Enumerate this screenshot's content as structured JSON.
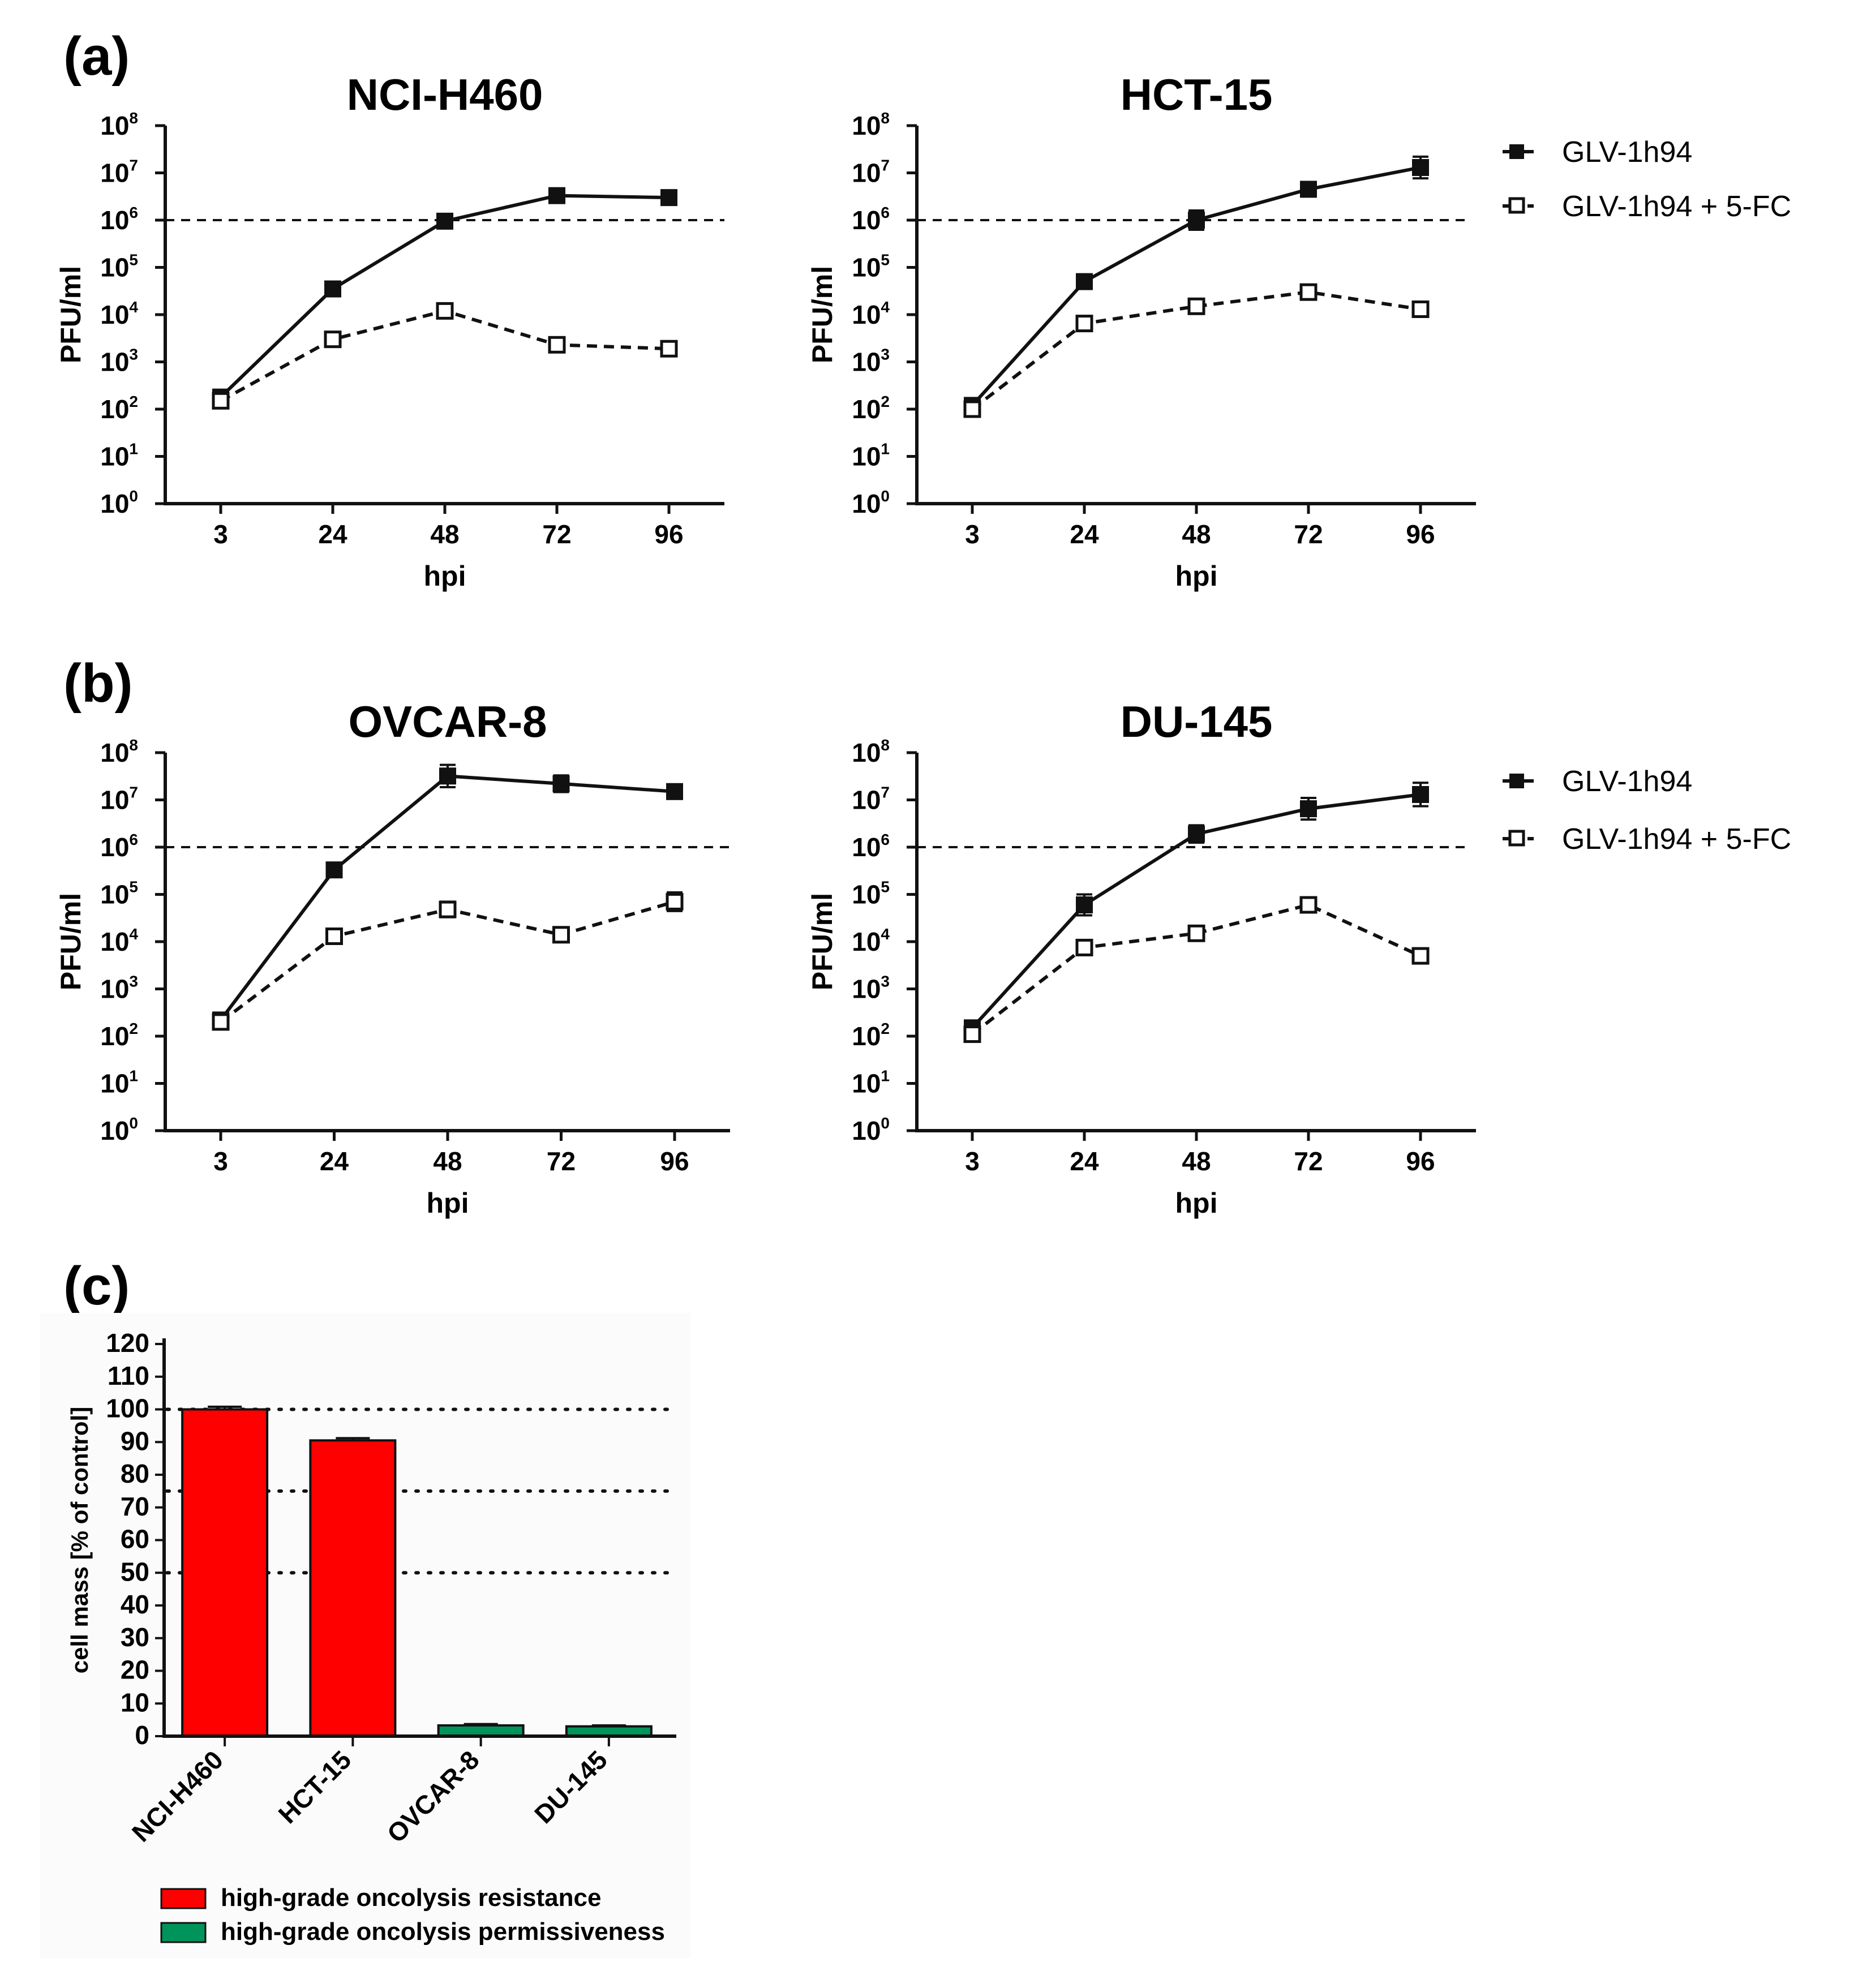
{
  "panel_labels": {
    "a": "(a)",
    "b": "(b)",
    "c": "(c)"
  },
  "line_chart_common": {
    "x_categories": [
      "3",
      "24",
      "48",
      "72",
      "96"
    ],
    "xlabel": "hpi",
    "ylabel": "PFU/ml",
    "y_scale": "log10",
    "ylim_exponents": [
      0,
      8
    ],
    "y_tick_base": "10",
    "y_tick_exponents": [
      "0",
      "1",
      "2",
      "3",
      "4",
      "5",
      "6",
      "7",
      "8"
    ],
    "reference_line_y": 1000000,
    "reference_line_style": "dashed"
  },
  "legend": {
    "series_1": "GLV-1h94",
    "series_2": "GLV-1h94 + 5-FC"
  },
  "colors": {
    "resistance": "#ff0000",
    "permissiveness": "#00945a",
    "line": "#111111"
  },
  "chart_data": [
    {
      "type": "line",
      "title": "NCI-H460",
      "x": [
        "3",
        "24",
        "48",
        "72",
        "96"
      ],
      "series": [
        {
          "name": "GLV-1h94",
          "values": [
            180,
            35000,
            950000,
            3300000,
            3000000
          ],
          "error_upper": [
            200,
            38000,
            1050000,
            3600000,
            3200000
          ]
        },
        {
          "name": "GLV-1h94 + 5-FC",
          "values": [
            150,
            3000,
            12000,
            2300,
            1900
          ],
          "error_upper": [
            160,
            3300,
            14000,
            2500,
            2100
          ]
        }
      ]
    },
    {
      "type": "line",
      "title": "HCT-15",
      "x": [
        "3",
        "24",
        "48",
        "72",
        "96"
      ],
      "series": [
        {
          "name": "GLV-1h94",
          "values": [
            120,
            50000,
            1000000,
            4500000,
            13000000
          ],
          "error_upper": [
            140,
            70000,
            1600000,
            5200000,
            22000000
          ]
        },
        {
          "name": "GLV-1h94 + 5-FC",
          "values": [
            100,
            6500,
            15000,
            30000,
            13000
          ],
          "error_upper": [
            110,
            7200,
            17000,
            35000,
            14000
          ]
        }
      ]
    },
    {
      "type": "line",
      "title": "OVCAR-8",
      "x": [
        "3",
        "24",
        "48",
        "72",
        "96"
      ],
      "series": [
        {
          "name": "GLV-1h94",
          "values": [
            220,
            330000,
            32000000,
            22000000,
            15000000
          ],
          "error_upper": [
            260,
            360000,
            55000000,
            33000000,
            17000000
          ]
        },
        {
          "name": "GLV-1h94 + 5-FC",
          "values": [
            200,
            13000,
            48000,
            14000,
            70000
          ],
          "error_upper": [
            230,
            15000,
            70000,
            19000,
            110000
          ]
        }
      ]
    },
    {
      "type": "line",
      "title": "DU-145",
      "x": [
        "3",
        "24",
        "48",
        "72",
        "96"
      ],
      "series": [
        {
          "name": "GLV-1h94",
          "values": [
            150,
            60000,
            1900000,
            6500000,
            13000000
          ],
          "error_upper": [
            170,
            100000,
            2900000,
            11000000,
            23000000
          ]
        },
        {
          "name": "GLV-1h94 + 5-FC",
          "values": [
            110,
            7500,
            15000,
            60000,
            5000
          ],
          "error_upper": [
            130,
            8500,
            17000,
            68000,
            5600
          ]
        }
      ]
    },
    {
      "type": "bar",
      "categories": [
        "NCI-H460",
        "HCT-15",
        "OVCAR-8",
        "DU-145"
      ],
      "values": [
        100,
        90.5,
        3.3,
        3.0
      ],
      "error_upper": [
        100.8,
        91.2,
        3.7,
        3.3
      ],
      "bar_colors": [
        "#ff0000",
        "#ff0000",
        "#00945a",
        "#00945a"
      ],
      "ylabel": "cell mass [% of control]",
      "ylim": [
        0,
        120
      ],
      "yticks": [
        "0",
        "10",
        "20",
        "30",
        "40",
        "50",
        "60",
        "70",
        "80",
        "90",
        "100",
        "110",
        "120"
      ],
      "reference_lines": [
        100,
        75,
        50
      ],
      "reference_line_style": "dotted",
      "legend": [
        {
          "label": "high-grade oncolysis resistance",
          "color": "#ff0000"
        },
        {
          "label": "high-grade oncolysis permissiveness",
          "color": "#00945a"
        }
      ]
    }
  ]
}
